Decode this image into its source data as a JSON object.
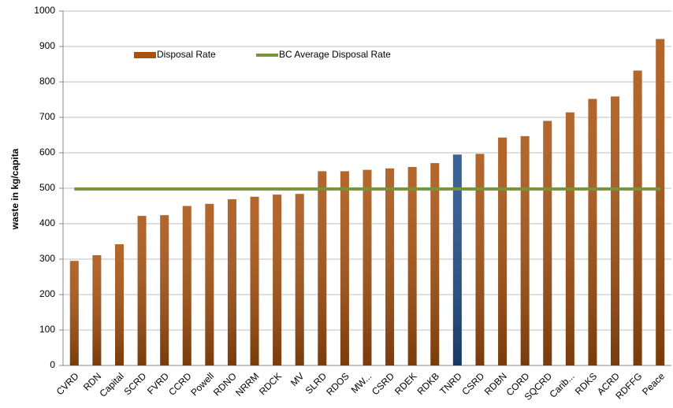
{
  "chart_data": {
    "type": "bar",
    "categories": [
      "CVRD",
      "RDN",
      "Capital",
      "SCRD",
      "FVRD",
      "CCRD",
      "Powell",
      "RDNO",
      "NRRM",
      "RDCK",
      "MV",
      "SLRD",
      "RDOS",
      "MW...",
      "CSRD",
      "RDEK",
      "RDKB",
      "TNRD",
      "CSRD",
      "RDBN",
      "CORD",
      "SQCRD",
      "Carib...",
      "RDKS",
      "ACRD",
      "RDFFG",
      "Peace"
    ],
    "series": [
      {
        "name": "Disposal Rate",
        "color": "#a8520f",
        "colors": [
          "#a8520f",
          "#a8520f",
          "#a8520f",
          "#a8520f",
          "#a8520f",
          "#a8520f",
          "#a8520f",
          "#a8520f",
          "#a8520f",
          "#a8520f",
          "#a8520f",
          "#a8520f",
          "#a8520f",
          "#a8520f",
          "#a8520f",
          "#a8520f",
          "#a8520f",
          "#1f4e8c",
          "#a8520f",
          "#a8520f",
          "#a8520f",
          "#a8520f",
          "#a8520f",
          "#a8520f",
          "#a8520f",
          "#a8520f",
          "#a8520f"
        ],
        "values": [
          295,
          311,
          342,
          422,
          424,
          450,
          456,
          469,
          476,
          482,
          484,
          548,
          548,
          552,
          556,
          560,
          571,
          595,
          597,
          643,
          647,
          690,
          714,
          752,
          759,
          832,
          921
        ]
      },
      {
        "name": "BC Average Disposal Rate",
        "color": "#77933c",
        "type": "line",
        "values": [
          498,
          498,
          498,
          498,
          498,
          498,
          498,
          498,
          498,
          498,
          498,
          498,
          498,
          498,
          498,
          498,
          498,
          498,
          498,
          498,
          498,
          498,
          498,
          498,
          498,
          498,
          498
        ]
      }
    ],
    "ylabel": "waste in kg/capita",
    "ylim": [
      0,
      1000
    ],
    "yticks": [
      0,
      100,
      200,
      300,
      400,
      500,
      600,
      700,
      800,
      900,
      1000
    ],
    "grid": true,
    "legend": "top-left"
  }
}
